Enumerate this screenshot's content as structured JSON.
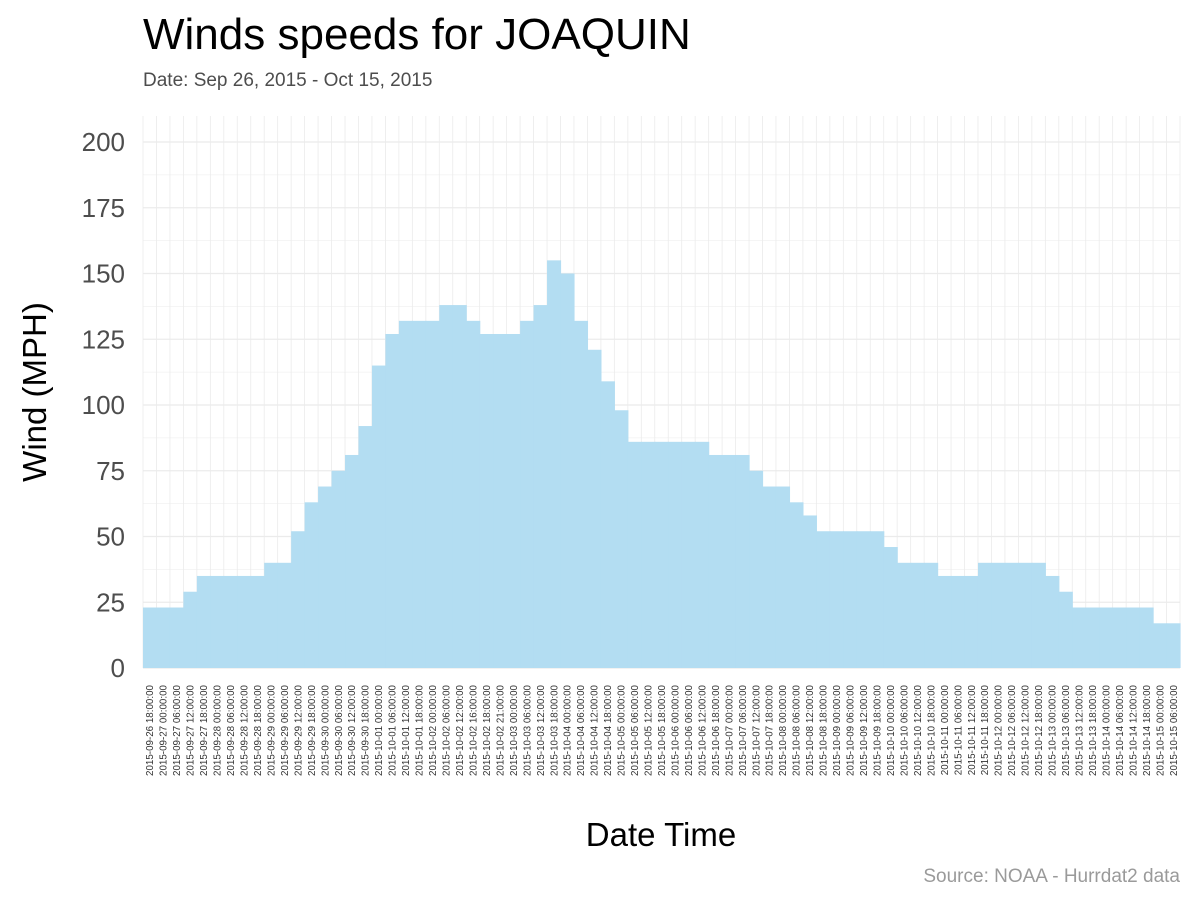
{
  "header": {
    "title": "Winds speeds for JOAQUIN",
    "subtitle": "Date:  Sep 26, 2015 - Oct 15, 2015"
  },
  "caption": "Source: NOAA - Hurrdat2 data",
  "colors": {
    "fill": "#b3ddf2",
    "grid": "#ebebeb",
    "axis_text": "#4d4d4d",
    "tick_label": "#333333"
  },
  "chart_data": {
    "type": "area",
    "xlabel": "Date Time",
    "ylabel": "Wind (MPH)",
    "ylim": [
      0,
      200
    ],
    "y_ticks": [
      "0",
      "25",
      "50",
      "75",
      "100",
      "125",
      "150",
      "175",
      "200"
    ],
    "grid": true,
    "x": [
      "2015-09-26 18:00:00",
      "2015-09-27 00:00:00",
      "2015-09-27 06:00:00",
      "2015-09-27 12:00:00",
      "2015-09-27 18:00:00",
      "2015-09-28 00:00:00",
      "2015-09-28 06:00:00",
      "2015-09-28 12:00:00",
      "2015-09-28 18:00:00",
      "2015-09-29 00:00:00",
      "2015-09-29 06:00:00",
      "2015-09-29 12:00:00",
      "2015-09-29 18:00:00",
      "2015-09-30 00:00:00",
      "2015-09-30 06:00:00",
      "2015-09-30 12:00:00",
      "2015-09-30 18:00:00",
      "2015-10-01 00:00:00",
      "2015-10-01 06:00:00",
      "2015-10-01 12:00:00",
      "2015-10-01 18:00:00",
      "2015-10-02 00:00:00",
      "2015-10-02 06:00:00",
      "2015-10-02 12:00:00",
      "2015-10-02 16:00:00",
      "2015-10-02 18:00:00",
      "2015-10-02 21:00:00",
      "2015-10-03 00:00:00",
      "2015-10-03 06:00:00",
      "2015-10-03 12:00:00",
      "2015-10-03 18:00:00",
      "2015-10-04 00:00:00",
      "2015-10-04 06:00:00",
      "2015-10-04 12:00:00",
      "2015-10-04 18:00:00",
      "2015-10-05 00:00:00",
      "2015-10-05 06:00:00",
      "2015-10-05 12:00:00",
      "2015-10-05 18:00:00",
      "2015-10-06 00:00:00",
      "2015-10-06 06:00:00",
      "2015-10-06 12:00:00",
      "2015-10-06 18:00:00",
      "2015-10-07 00:00:00",
      "2015-10-07 06:00:00",
      "2015-10-07 12:00:00",
      "2015-10-07 18:00:00",
      "2015-10-08 00:00:00",
      "2015-10-08 06:00:00",
      "2015-10-08 12:00:00",
      "2015-10-08 18:00:00",
      "2015-10-09 00:00:00",
      "2015-10-09 06:00:00",
      "2015-10-09 12:00:00",
      "2015-10-09 18:00:00",
      "2015-10-10 00:00:00",
      "2015-10-10 06:00:00",
      "2015-10-10 12:00:00",
      "2015-10-10 18:00:00",
      "2015-10-11 00:00:00",
      "2015-10-11 06:00:00",
      "2015-10-11 12:00:00",
      "2015-10-11 18:00:00",
      "2015-10-12 00:00:00",
      "2015-10-12 06:00:00",
      "2015-10-12 12:00:00",
      "2015-10-12 18:00:00",
      "2015-10-13 00:00:00",
      "2015-10-13 06:00:00",
      "2015-10-13 12:00:00",
      "2015-10-13 18:00:00",
      "2015-10-14 00:00:00",
      "2015-10-14 06:00:00",
      "2015-10-14 12:00:00",
      "2015-10-14 18:00:00",
      "2015-10-15 00:00:00",
      "2015-10-15 06:00:00"
    ],
    "series": [
      {
        "values": [
          23,
          23,
          23,
          29,
          35,
          35,
          35,
          35,
          35,
          40,
          40,
          52,
          63,
          69,
          75,
          81,
          92,
          115,
          127,
          132,
          132,
          132,
          138,
          138,
          132,
          127,
          127,
          127,
          132,
          138,
          155,
          150,
          132,
          121,
          109,
          98,
          86,
          86,
          86,
          86,
          86,
          86,
          81,
          81,
          81,
          75,
          69,
          69,
          63,
          58,
          52,
          52,
          52,
          52,
          52,
          46,
          40,
          40,
          40,
          35,
          35,
          35,
          40,
          40,
          40,
          40,
          40,
          35,
          29,
          23,
          23,
          23,
          23,
          23,
          23,
          17,
          17
        ]
      }
    ]
  }
}
